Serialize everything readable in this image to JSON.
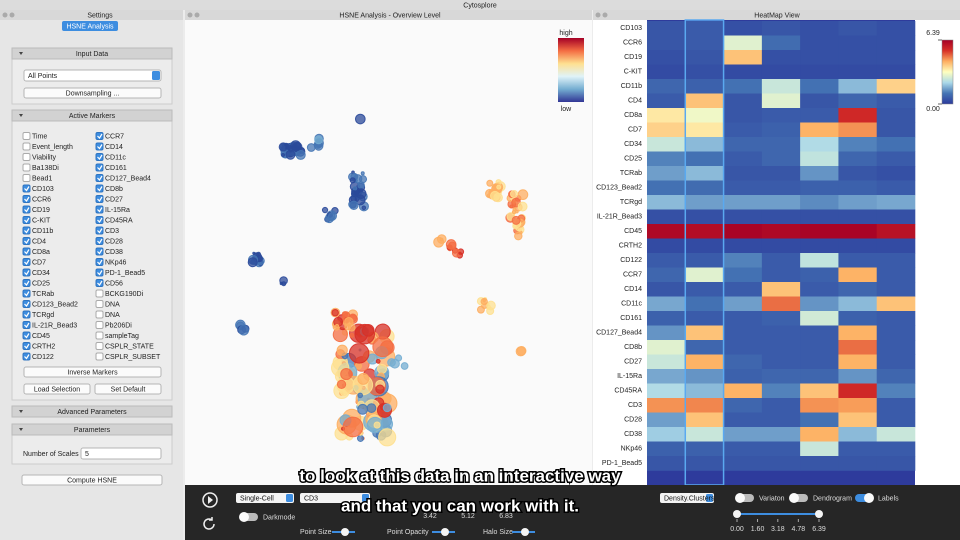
{
  "app": {
    "title": "Cytosplore"
  },
  "settings": {
    "title": "Settings",
    "tab": "HSNE Analysis",
    "input_data": {
      "header": "Input Data",
      "select": "All Points",
      "button": "Downsampling ..."
    },
    "active_markers": {
      "header": "Active Markers",
      "columns": [
        [
          {
            "label": "Time",
            "checked": false
          },
          {
            "label": "Event_length",
            "checked": false
          },
          {
            "label": "Viability",
            "checked": false
          },
          {
            "label": "Ba138Di",
            "checked": false
          },
          {
            "label": "Bead1",
            "checked": false
          },
          {
            "label": "CD103",
            "checked": true
          },
          {
            "label": "CCR6",
            "checked": true
          },
          {
            "label": "CD19",
            "checked": true
          },
          {
            "label": "C-KIT",
            "checked": true
          },
          {
            "label": "CD11b",
            "checked": true
          },
          {
            "label": "CD4",
            "checked": true
          },
          {
            "label": "CD8a",
            "checked": true
          },
          {
            "label": "CD7",
            "checked": true
          },
          {
            "label": "CD34",
            "checked": true
          },
          {
            "label": "CD25",
            "checked": true
          },
          {
            "label": "TCRab",
            "checked": true
          },
          {
            "label": "CD123_Bead2",
            "checked": true
          },
          {
            "label": "TCRgd",
            "checked": true
          },
          {
            "label": "IL-21R_Bead3",
            "checked": true
          },
          {
            "label": "CD45",
            "checked": true
          },
          {
            "label": "CRTH2",
            "checked": true
          },
          {
            "label": "CD122",
            "checked": true
          }
        ],
        [
          {
            "label": "CCR7",
            "checked": true
          },
          {
            "label": "CD14",
            "checked": true
          },
          {
            "label": "CD11c",
            "checked": true
          },
          {
            "label": "CD161",
            "checked": true
          },
          {
            "label": "CD127_Bead4",
            "checked": true
          },
          {
            "label": "CD8b",
            "checked": true
          },
          {
            "label": "CD27",
            "checked": true
          },
          {
            "label": "IL-15Ra",
            "checked": true
          },
          {
            "label": "CD45RA",
            "checked": true
          },
          {
            "label": "CD3",
            "checked": true
          },
          {
            "label": "CD28",
            "checked": true
          },
          {
            "label": "CD38",
            "checked": true
          },
          {
            "label": "NKp46",
            "checked": true
          },
          {
            "label": "PD-1_Bead5",
            "checked": true
          },
          {
            "label": "CD56",
            "checked": true
          },
          {
            "label": "BCKG190Di",
            "checked": false
          },
          {
            "label": "DNA",
            "checked": false
          },
          {
            "label": "DNA",
            "checked": false
          },
          {
            "label": "Pb206Di",
            "checked": false
          },
          {
            "label": "sampleTag",
            "checked": false
          },
          {
            "label": "CSPLR_STATE",
            "checked": false
          },
          {
            "label": "CSPLR_SUBSET",
            "checked": false
          }
        ]
      ]
    },
    "inverse_button": "Inverse Markers",
    "load_button": "Load Selection",
    "default_button": "Set Default",
    "advanced_header": "Advanced Parameters",
    "parameters": {
      "header": "Parameters",
      "scales_label": "Number of Scales",
      "scales_value": 5
    },
    "compute_button": "Compute HSNE"
  },
  "overview": {
    "title": "HSNE Analysis - Overview Level",
    "legend_high": "high",
    "legend_low": "low"
  },
  "heatmap": {
    "title": "HeatMap View",
    "rows": [
      "CD103",
      "CCR6",
      "CD19",
      "C-KIT",
      "CD11b",
      "CD4",
      "CD8a",
      "CD7",
      "CD34",
      "CD25",
      "TCRab",
      "CD123_Bead2",
      "TCRgd",
      "IL-21R_Bead3",
      "CD45",
      "CRTH2",
      "CD122",
      "CCR7",
      "CD14",
      "CD11c",
      "CD161",
      "CD127_Bead4",
      "CD8b",
      "CD27",
      "IL-15Ra",
      "CD45RA",
      "CD3",
      "CD28",
      "CD38",
      "NKp46",
      "PD-1_Bead5"
    ],
    "values": [
      [
        0.5,
        0.6,
        0.4,
        0.5,
        0.4,
        0.5,
        0.4
      ],
      [
        0.5,
        0.6,
        2.8,
        0.9,
        0.4,
        0.4,
        0.4
      ],
      [
        0.4,
        0.5,
        4.0,
        0.4,
        0.4,
        0.4,
        0.4
      ],
      [
        0.3,
        0.4,
        0.3,
        0.3,
        0.3,
        0.3,
        0.3
      ],
      [
        0.8,
        0.7,
        1.0,
        2.5,
        1.0,
        1.8,
        3.8
      ],
      [
        0.6,
        4.0,
        0.5,
        2.8,
        0.5,
        0.8,
        0.6
      ],
      [
        3.5,
        3.0,
        0.5,
        0.6,
        0.6,
        5.5,
        0.5
      ],
      [
        3.8,
        3.5,
        0.6,
        0.7,
        4.2,
        4.5,
        0.5
      ],
      [
        2.5,
        1.8,
        0.8,
        0.8,
        2.2,
        1.2,
        1.0
      ],
      [
        1.2,
        1.0,
        0.6,
        0.8,
        2.4,
        0.8,
        0.6
      ],
      [
        1.5,
        1.8,
        0.5,
        0.5,
        1.4,
        0.5,
        0.4
      ],
      [
        1.0,
        0.9,
        0.6,
        0.6,
        0.7,
        0.7,
        0.6
      ],
      [
        1.8,
        1.5,
        1.5,
        1.5,
        1.3,
        1.5,
        1.6
      ],
      [
        0.4,
        0.4,
        0.4,
        0.4,
        0.4,
        0.4,
        0.4
      ],
      [
        6.2,
        6.1,
        6.3,
        6.2,
        6.3,
        6.3,
        6.0
      ],
      [
        0.3,
        0.3,
        0.3,
        0.3,
        0.3,
        0.3,
        0.3
      ],
      [
        0.6,
        0.6,
        1.2,
        0.6,
        2.4,
        0.6,
        0.6
      ],
      [
        0.8,
        2.8,
        1.0,
        0.6,
        0.7,
        4.2,
        0.6
      ],
      [
        0.5,
        0.6,
        0.6,
        4.0,
        0.6,
        0.8,
        0.6
      ],
      [
        1.6,
        1.0,
        1.5,
        4.8,
        1.4,
        1.8,
        4.0
      ],
      [
        0.7,
        0.6,
        0.6,
        0.7,
        2.6,
        0.7,
        0.6
      ],
      [
        1.4,
        4.0,
        0.6,
        0.6,
        0.6,
        4.2,
        0.6
      ],
      [
        2.8,
        0.8,
        0.6,
        0.6,
        0.6,
        4.8,
        0.6
      ],
      [
        2.5,
        4.2,
        0.8,
        0.6,
        0.6,
        4.2,
        0.6
      ],
      [
        1.6,
        1.4,
        0.7,
        0.8,
        0.8,
        1.4,
        0.8
      ],
      [
        2.2,
        1.8,
        4.2,
        1.2,
        4.0,
        5.5,
        1.2
      ],
      [
        4.5,
        4.6,
        0.8,
        0.6,
        4.5,
        4.4,
        0.6
      ],
      [
        1.5,
        4.0,
        0.6,
        0.6,
        1.0,
        4.0,
        0.6
      ],
      [
        2.0,
        2.5,
        1.5,
        1.5,
        4.2,
        1.8,
        2.5
      ],
      [
        0.7,
        0.7,
        0.6,
        0.6,
        2.5,
        0.6,
        0.6
      ],
      [
        0.5,
        0.5,
        0.5,
        0.5,
        0.5,
        0.5,
        0.5
      ]
    ],
    "colorbar_ticks": [
      6.39,
      {
        "value": 0,
        "label": "0.00"
      }
    ]
  },
  "toolbar": {
    "mode_select": "Single-Cell",
    "marker_select": "CD3",
    "darkmode_label": "Darkmode",
    "darkmode": false,
    "point_size": "Point Size",
    "point_opacity": "Point Opacity",
    "halo_size": "Halo Size",
    "scale_labels": [
      3.42,
      5.12,
      6.83
    ],
    "cluster_select": "Density.Clusters",
    "variation_label": "Variaton",
    "variation": false,
    "dendrogram_label": "Dendrogram",
    "dendrogram": false,
    "labels_label": "Labels",
    "labels": true,
    "range_ticks": [
      {
        "value": 0,
        "label": "0.00"
      },
      {
        "value": 1.6,
        "label": "1.60"
      },
      3.18,
      4.78,
      6.39
    ],
    "range_selection": [
      0,
      6.39
    ]
  },
  "subtitles": [
    "to look at this data in an interactive way",
    "and that you can work with it."
  ]
}
